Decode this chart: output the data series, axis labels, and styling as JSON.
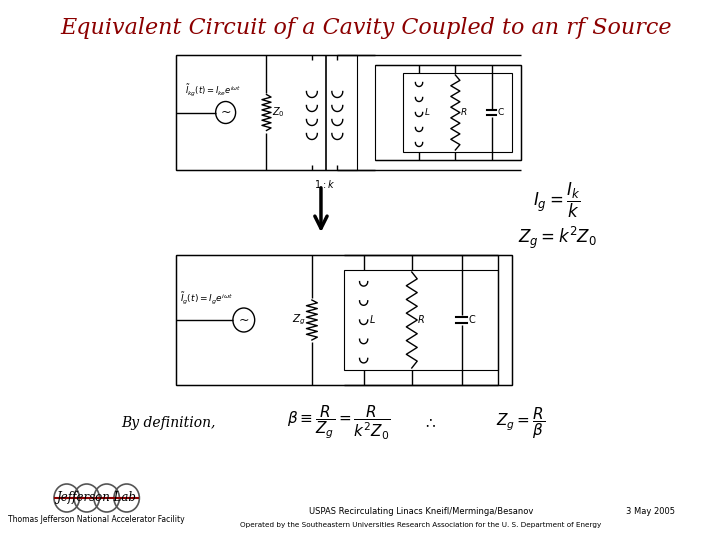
{
  "title": "Equivalent Circuit of a Cavity Coupled to an rf Source",
  "title_color": "#8B0000",
  "bg_color": "#FFFFFF",
  "border_color": "#888888",
  "slide_bg": "#DCDCDC",
  "footer_left": "Thomas Jefferson National Accelerator Facility",
  "footer_center": "USPAS Recirculating Linacs Kneifl/Merminga/Besanov",
  "footer_center2": "Operated by the Southeastern Universities Research Association for the U. S. Department of Energy",
  "footer_right": "3 May 2005",
  "by_definition": "By definition,"
}
